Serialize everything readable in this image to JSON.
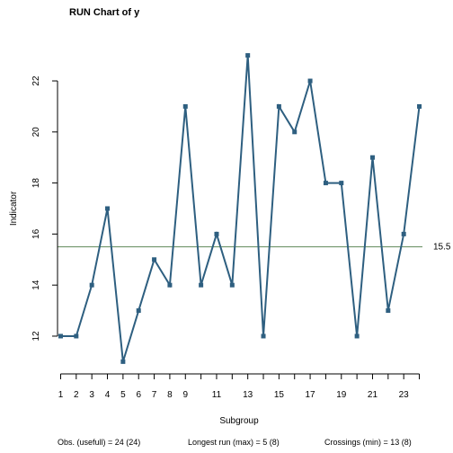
{
  "chart_data": {
    "type": "line",
    "title": "RUN Chart of y",
    "xlabel": "Subgroup",
    "ylabel": "Indicator",
    "x": [
      1,
      2,
      3,
      4,
      5,
      6,
      7,
      8,
      9,
      10,
      11,
      12,
      13,
      14,
      15,
      16,
      17,
      18,
      19,
      20,
      21,
      22,
      23,
      24
    ],
    "values": [
      12,
      12,
      14,
      17,
      11,
      13,
      15,
      14,
      21,
      14,
      16,
      14,
      23,
      12,
      21,
      20,
      22,
      18,
      18,
      12,
      19,
      13,
      16,
      21
    ],
    "xticks": [
      1,
      2,
      3,
      4,
      5,
      6,
      7,
      8,
      9,
      11,
      13,
      15,
      17,
      19,
      21,
      23
    ],
    "yticks": [
      12,
      14,
      16,
      18,
      20,
      22
    ],
    "xlim": [
      0.8,
      24.2
    ],
    "ylim": [
      10.52,
      23.48
    ],
    "center_line": 15.5,
    "center_label": "15.5",
    "grid": false,
    "colors": {
      "series": "#2e5f80",
      "center_line": "#5f8a5a",
      "axis": "#000000"
    },
    "footer": {
      "obs": "Obs. (usefull) = 24 (24)",
      "longest_run": "Longest run (max) = 5 (8)",
      "crossings": "Crossings (min) = 13 (8)"
    }
  }
}
